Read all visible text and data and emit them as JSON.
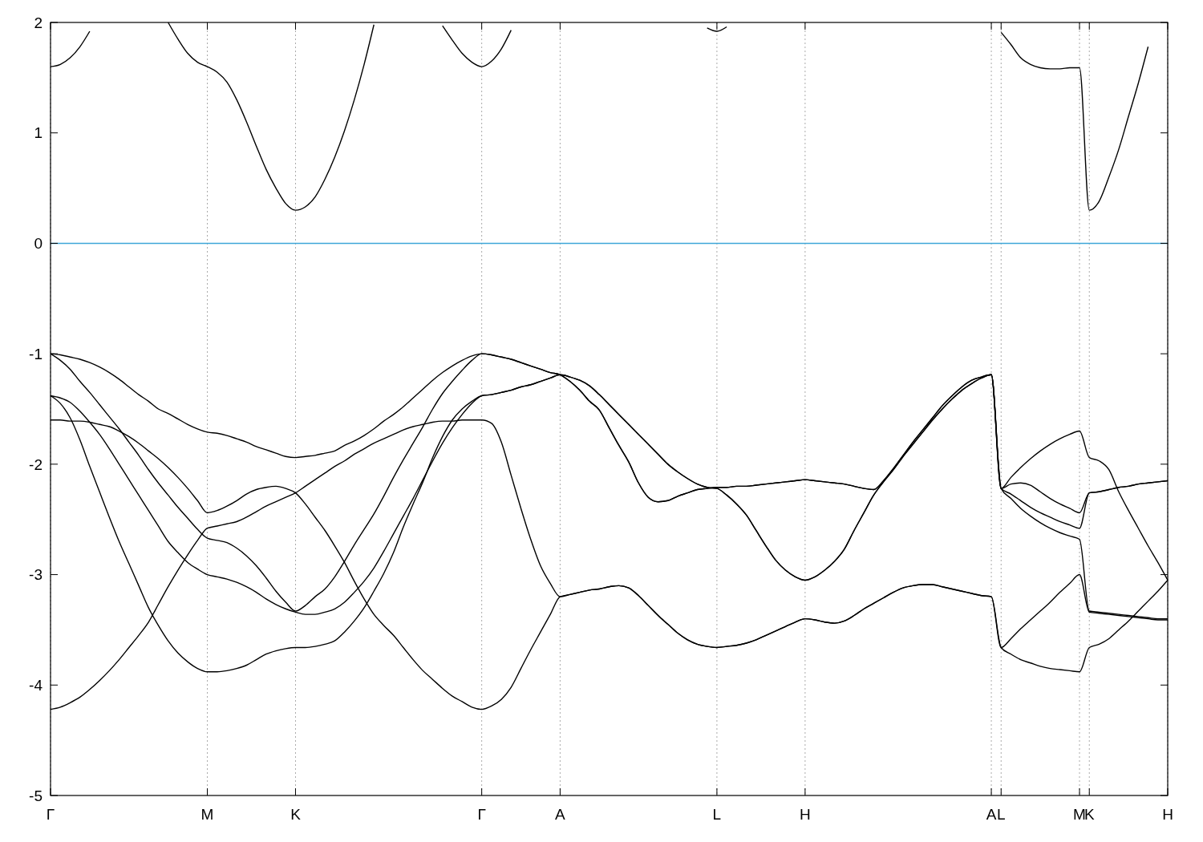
{
  "chart_data": {
    "type": "line",
    "ylim": [
      -5,
      2
    ],
    "categories": [
      "Γ",
      null,
      null,
      null,
      null,
      null,
      null,
      null,
      null,
      null,
      null,
      null,
      null,
      null,
      null,
      null,
      "M",
      null,
      null,
      null,
      null,
      null,
      null,
      null,
      null,
      "K",
      null,
      null,
      null,
      null,
      null,
      null,
      null,
      null,
      null,
      null,
      null,
      null,
      null,
      null,
      null,
      null,
      null,
      null,
      "Γ",
      null,
      null,
      null,
      null,
      null,
      null,
      null,
      "A",
      null,
      null,
      null,
      null,
      null,
      null,
      null,
      null,
      null,
      null,
      null,
      null,
      null,
      null,
      null,
      "L",
      null,
      null,
      null,
      null,
      null,
      null,
      null,
      null,
      "H",
      null,
      null,
      null,
      null,
      null,
      null,
      null,
      null,
      null,
      null,
      null,
      null,
      null,
      null,
      null,
      null,
      null,
      null,
      "A",
      "L",
      null,
      null,
      null,
      null,
      null,
      null,
      null,
      "M",
      "K",
      null,
      null,
      null,
      null,
      null,
      null,
      null,
      "H"
    ],
    "yticks": [
      -5,
      -4,
      -3,
      -2,
      -1,
      0,
      1,
      2
    ],
    "grid": "x",
    "ref_lines": [
      {
        "axis": "y",
        "value": 0,
        "color": "#3ea6d8"
      }
    ],
    "series": [
      {
        "color": "#000000",
        "values": [
          -1.0,
          -1.01,
          -1.03,
          -1.05,
          -1.08,
          -1.12,
          -1.17,
          -1.23,
          -1.3,
          -1.37,
          -1.43,
          -1.5,
          -1.54,
          -1.59,
          -1.64,
          -1.68,
          -1.71,
          -1.72,
          -1.74,
          -1.77,
          -1.8,
          -1.84,
          -1.87,
          -1.9,
          -1.93,
          -1.94,
          -1.93,
          -1.92,
          -1.9,
          -1.88,
          -1.83,
          -1.79,
          -1.74,
          -1.68,
          -1.61,
          -1.55,
          -1.48,
          -1.4,
          -1.32,
          -1.24,
          -1.17,
          -1.11,
          -1.06,
          -1.02,
          -1.0,
          -1.01,
          -1.03,
          -1.05,
          -1.08,
          -1.11,
          -1.14,
          -1.17,
          -1.19,
          -1.25,
          -1.33,
          -1.43,
          -1.51,
          -1.67,
          -1.83,
          -1.98,
          -2.17,
          -2.3,
          -2.34,
          -2.33,
          -2.29,
          -2.26,
          -2.23,
          -2.22,
          -2.21,
          -2.21,
          -2.2,
          -2.2,
          -2.19,
          -2.18,
          -2.17,
          -2.16,
          -2.15,
          -2.14,
          -2.15,
          -2.16,
          -2.17,
          -2.18,
          -2.2,
          -2.22,
          -2.23,
          -2.15,
          -2.04,
          -1.92,
          -1.8,
          -1.69,
          -1.58,
          -1.47,
          -1.38,
          -1.3,
          -1.24,
          -1.21,
          -1.19,
          -2.22,
          -2.12,
          -2.03,
          -1.95,
          -1.88,
          -1.82,
          -1.77,
          -1.73,
          -1.7,
          -1.94,
          -1.97,
          -2.05,
          -2.25,
          -2.42,
          -2.58,
          -2.74,
          -2.89,
          -3.05
        ]
      },
      {
        "color": "#000000",
        "values": [
          -1.0,
          -1.06,
          -1.14,
          -1.25,
          -1.35,
          -1.46,
          -1.57,
          -1.68,
          -1.8,
          -1.92,
          -2.05,
          -2.17,
          -2.28,
          -2.39,
          -2.49,
          -2.59,
          -2.67,
          -2.69,
          -2.71,
          -2.76,
          -2.83,
          -2.92,
          -3.03,
          -3.15,
          -3.25,
          -3.33,
          -3.28,
          -3.2,
          -3.13,
          -3.02,
          -2.88,
          -2.73,
          -2.59,
          -2.45,
          -2.29,
          -2.12,
          -1.96,
          -1.81,
          -1.66,
          -1.5,
          -1.36,
          -1.25,
          -1.15,
          -1.06,
          -1.0,
          -1.01,
          -1.03,
          -1.05,
          -1.08,
          -1.11,
          -1.14,
          -1.17,
          -1.19,
          -1.25,
          -1.33,
          -1.43,
          -1.51,
          -1.67,
          -1.83,
          -1.98,
          -2.17,
          -2.3,
          -2.34,
          -2.33,
          -2.29,
          -2.26,
          -2.23,
          -2.22,
          -2.21,
          -2.21,
          -2.2,
          -2.2,
          -2.19,
          -2.18,
          -2.17,
          -2.16,
          -2.15,
          -2.14,
          -2.15,
          -2.16,
          -2.17,
          -2.18,
          -2.2,
          -2.22,
          -2.23,
          -2.15,
          -2.04,
          -1.92,
          -1.8,
          -1.69,
          -1.58,
          -1.47,
          -1.38,
          -1.3,
          -1.24,
          -1.21,
          -1.19,
          -2.22,
          -2.18,
          -2.17,
          -2.19,
          -2.25,
          -2.31,
          -2.36,
          -2.4,
          -2.44,
          -2.26,
          -2.25,
          -2.23,
          -2.21,
          -2.2,
          -2.18,
          -2.17,
          -2.16,
          -2.15
        ]
      },
      {
        "color": "#000000",
        "values": [
          -1.38,
          -1.4,
          -1.44,
          -1.52,
          -1.62,
          -1.73,
          -1.86,
          -2.0,
          -2.14,
          -2.28,
          -2.42,
          -2.56,
          -2.7,
          -2.8,
          -2.89,
          -2.95,
          -3.0,
          -3.02,
          -3.04,
          -3.07,
          -3.11,
          -3.16,
          -3.22,
          -3.27,
          -3.31,
          -3.34,
          -3.36,
          -3.36,
          -3.34,
          -3.31,
          -3.25,
          -3.16,
          -3.06,
          -2.94,
          -2.79,
          -2.63,
          -2.47,
          -2.31,
          -2.14,
          -1.97,
          -1.81,
          -1.67,
          -1.55,
          -1.45,
          -1.38,
          -1.37,
          -1.35,
          -1.33,
          -1.3,
          -1.28,
          -1.25,
          -1.22,
          -1.19,
          -1.21,
          -1.24,
          -1.29,
          -1.37,
          -1.46,
          -1.55,
          -1.64,
          -1.73,
          -1.82,
          -1.91,
          -2.0,
          -2.07,
          -2.13,
          -2.18,
          -2.21,
          -2.22,
          -2.28,
          -2.36,
          -2.46,
          -2.6,
          -2.74,
          -2.87,
          -2.96,
          -3.02,
          -3.05,
          -3.02,
          -2.96,
          -2.88,
          -2.77,
          -2.6,
          -2.44,
          -2.28,
          -2.16,
          -2.05,
          -1.93,
          -1.82,
          -1.71,
          -1.6,
          -1.5,
          -1.41,
          -1.33,
          -1.27,
          -1.22,
          -1.19,
          -2.22,
          -2.27,
          -2.33,
          -2.39,
          -2.44,
          -2.48,
          -2.52,
          -2.55,
          -2.58,
          -2.26,
          -2.25,
          -2.23,
          -2.21,
          -2.2,
          -2.18,
          -2.17,
          -2.16,
          -2.15
        ]
      },
      {
        "color": "#000000",
        "values": [
          -1.38,
          -1.45,
          -1.58,
          -1.78,
          -2.02,
          -2.25,
          -2.48,
          -2.7,
          -2.9,
          -3.1,
          -3.3,
          -3.46,
          -3.6,
          -3.71,
          -3.79,
          -3.85,
          -3.88,
          -3.88,
          -3.87,
          -3.85,
          -3.82,
          -3.77,
          -3.72,
          -3.69,
          -3.67,
          -3.66,
          -3.66,
          -3.65,
          -3.63,
          -3.6,
          -3.52,
          -3.42,
          -3.3,
          -3.15,
          -2.99,
          -2.8,
          -2.57,
          -2.36,
          -2.16,
          -1.94,
          -1.75,
          -1.6,
          -1.5,
          -1.43,
          -1.38,
          -1.37,
          -1.35,
          -1.33,
          -1.3,
          -1.28,
          -1.25,
          -1.22,
          -1.19,
          -1.21,
          -1.24,
          -1.29,
          -1.37,
          -1.46,
          -1.55,
          -1.64,
          -1.73,
          -1.82,
          -1.91,
          -2.0,
          -2.07,
          -2.13,
          -2.18,
          -2.21,
          -2.22,
          -2.28,
          -2.36,
          -2.46,
          -2.6,
          -2.74,
          -2.87,
          -2.96,
          -3.02,
          -3.05,
          -3.02,
          -2.96,
          -2.88,
          -2.77,
          -2.6,
          -2.44,
          -2.28,
          -2.16,
          -2.05,
          -1.93,
          -1.82,
          -1.71,
          -1.6,
          -1.5,
          -1.41,
          -1.33,
          -1.27,
          -1.22,
          -1.19,
          -2.22,
          -2.31,
          -2.4,
          -2.47,
          -2.53,
          -2.58,
          -2.62,
          -2.65,
          -2.68,
          -3.33,
          -3.34,
          -3.35,
          -3.36,
          -3.37,
          -3.38,
          -3.39,
          -3.4,
          -3.4
        ]
      },
      {
        "color": "#000000",
        "values": [
          -1.6,
          -1.6,
          -1.61,
          -1.61,
          -1.62,
          -1.64,
          -1.66,
          -1.7,
          -1.75,
          -1.81,
          -1.88,
          -1.95,
          -2.03,
          -2.12,
          -2.22,
          -2.33,
          -2.44,
          -2.42,
          -2.38,
          -2.33,
          -2.27,
          -2.23,
          -2.21,
          -2.2,
          -2.22,
          -2.26,
          -2.36,
          -2.48,
          -2.6,
          -2.74,
          -2.89,
          -3.06,
          -3.22,
          -3.36,
          -3.46,
          -3.55,
          -3.66,
          -3.77,
          -3.87,
          -3.95,
          -4.03,
          -4.1,
          -4.15,
          -4.2,
          -4.22,
          -4.19,
          -4.13,
          -4.02,
          -3.85,
          -3.68,
          -3.52,
          -3.36,
          -3.2,
          -3.18,
          -3.16,
          -3.14,
          -3.13,
          -3.11,
          -3.1,
          -3.12,
          -3.19,
          -3.28,
          -3.37,
          -3.45,
          -3.53,
          -3.59,
          -3.63,
          -3.65,
          -3.66,
          -3.65,
          -3.64,
          -3.62,
          -3.59,
          -3.55,
          -3.51,
          -3.47,
          -3.43,
          -3.4,
          -3.41,
          -3.43,
          -3.44,
          -3.42,
          -3.37,
          -3.31,
          -3.26,
          -3.21,
          -3.16,
          -3.12,
          -3.1,
          -3.09,
          -3.09,
          -3.11,
          -3.13,
          -3.15,
          -3.17,
          -3.19,
          -3.2,
          -3.66,
          -3.58,
          -3.49,
          -3.41,
          -3.33,
          -3.25,
          -3.16,
          -3.08,
          -3.0,
          -3.34,
          -3.35,
          -3.36,
          -3.37,
          -3.38,
          -3.39,
          -3.4,
          -3.41,
          -3.41
        ]
      },
      {
        "color": "#000000",
        "values": [
          -4.22,
          -4.2,
          -4.16,
          -4.11,
          -4.04,
          -3.96,
          -3.87,
          -3.77,
          -3.66,
          -3.55,
          -3.43,
          -3.27,
          -3.11,
          -2.96,
          -2.82,
          -2.69,
          -2.58,
          -2.56,
          -2.54,
          -2.52,
          -2.48,
          -2.43,
          -2.38,
          -2.34,
          -2.3,
          -2.26,
          -2.2,
          -2.14,
          -2.08,
          -2.02,
          -1.97,
          -1.91,
          -1.86,
          -1.81,
          -1.77,
          -1.73,
          -1.69,
          -1.66,
          -1.64,
          -1.62,
          -1.61,
          -1.61,
          -1.6,
          -1.6,
          -1.6,
          -1.63,
          -1.8,
          -2.1,
          -2.4,
          -2.68,
          -2.92,
          -3.08,
          -3.2,
          -3.18,
          -3.16,
          -3.14,
          -3.13,
          -3.11,
          -3.1,
          -3.12,
          -3.19,
          -3.28,
          -3.37,
          -3.45,
          -3.53,
          -3.59,
          -3.63,
          -3.65,
          -3.66,
          -3.65,
          -3.64,
          -3.62,
          -3.59,
          -3.55,
          -3.51,
          -3.47,
          -3.43,
          -3.4,
          -3.41,
          -3.43,
          -3.44,
          -3.42,
          -3.37,
          -3.31,
          -3.26,
          -3.21,
          -3.16,
          -3.12,
          -3.1,
          -3.09,
          -3.09,
          -3.11,
          -3.13,
          -3.15,
          -3.17,
          -3.19,
          -3.2,
          -3.66,
          -3.72,
          -3.77,
          -3.8,
          -3.83,
          -3.85,
          -3.86,
          -3.87,
          -3.88,
          -3.66,
          -3.63,
          -3.58,
          -3.5,
          -3.42,
          -3.33,
          -3.24,
          -3.15,
          -3.05
        ]
      },
      {
        "color": "#000000",
        "values": [
          1.6,
          1.62,
          1.68,
          1.78,
          1.92,
          null,
          null,
          null,
          null,
          null,
          null,
          null,
          2.0,
          1.85,
          1.72,
          1.64,
          1.6,
          1.55,
          1.46,
          1.3,
          1.1,
          0.88,
          0.67,
          0.5,
          0.36,
          0.3,
          0.33,
          0.42,
          0.58,
          0.78,
          1.02,
          1.3,
          1.62,
          1.98,
          null,
          null,
          null,
          null,
          null,
          null,
          1.97,
          1.84,
          1.72,
          1.64,
          1.6,
          1.65,
          1.76,
          1.93,
          null,
          null,
          null,
          null,
          null,
          null,
          null,
          null,
          null,
          null,
          null,
          null,
          null,
          null,
          null,
          null,
          null,
          null,
          null,
          1.95,
          1.92,
          1.96,
          null,
          null,
          null,
          null,
          null,
          null,
          null,
          null,
          null,
          null,
          null,
          null,
          null,
          null,
          null,
          null,
          null,
          null,
          null,
          null,
          null,
          null,
          null,
          null,
          null,
          null,
          null,
          1.91,
          1.8,
          1.68,
          1.62,
          1.59,
          1.58,
          1.58,
          1.59,
          1.59,
          0.3,
          0.38,
          0.6,
          0.85,
          1.15,
          1.45,
          1.78,
          null,
          null
        ]
      }
    ]
  }
}
